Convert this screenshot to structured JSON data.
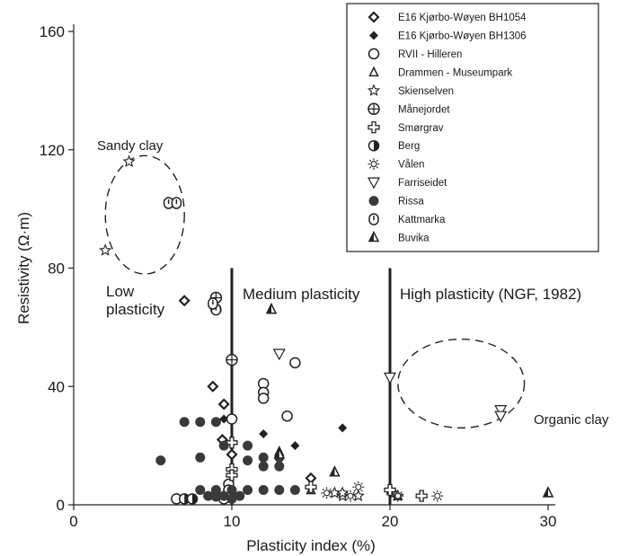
{
  "chart_data": {
    "type": "scatter",
    "xlabel": "Plasticity index (%)",
    "ylabel": "Resistivity (Ω·m)",
    "xlim": [
      0,
      30
    ],
    "ylim": [
      0,
      160
    ],
    "xticks": [
      0,
      10,
      20,
      30
    ],
    "yticks": [
      0,
      40,
      80,
      120,
      160
    ],
    "grid": false,
    "legend_position": "top-right",
    "vlines": [
      10,
      20
    ],
    "annotations": [
      {
        "id": "sandy",
        "text": "Sandy clay"
      },
      {
        "id": "low1",
        "text": "Low"
      },
      {
        "id": "low2",
        "text": "plasticity"
      },
      {
        "id": "medium",
        "text": "Medium plasticity"
      },
      {
        "id": "high",
        "text": "High plasticity (NGF, 1982)"
      },
      {
        "id": "organic",
        "text": "Organic clay"
      }
    ],
    "ellipses": [
      {
        "label": "Sandy clay",
        "cx": 4.5,
        "cy": 98,
        "rx": 2.5,
        "ry": 20
      },
      {
        "label": "Organic clay",
        "cx": 24.5,
        "cy": 41,
        "rx": 4,
        "ry": 15
      }
    ],
    "series": [
      {
        "name": "E16 Kjørbo-Wøyen BH1054",
        "marker": "diamond-open",
        "points": [
          [
            7,
            69
          ],
          [
            8.8,
            40
          ],
          [
            9.5,
            34
          ],
          [
            9.4,
            22
          ],
          [
            10,
            17
          ],
          [
            15,
            9
          ],
          [
            9.5,
            3
          ]
        ]
      },
      {
        "name": "E16 Kjørbo-Wøyen BH1306",
        "marker": "diamond-filled",
        "points": [
          [
            9.5,
            29
          ],
          [
            12,
            24
          ],
          [
            14,
            20
          ],
          [
            17,
            26
          ],
          [
            10,
            4
          ],
          [
            9.8,
            3
          ]
        ]
      },
      {
        "name": "RVII - Hilleren",
        "marker": "circle-open",
        "points": [
          [
            14,
            48
          ],
          [
            12,
            41
          ],
          [
            12,
            38
          ],
          [
            12,
            36
          ],
          [
            13.5,
            30
          ],
          [
            10,
            29
          ],
          [
            9,
            66
          ],
          [
            9.8,
            7
          ],
          [
            9.8,
            5
          ],
          [
            6.5,
            2
          ],
          [
            9.5,
            2
          ]
        ]
      },
      {
        "name": "Drammen - Museumpark",
        "marker": "triangle-open",
        "points": [
          [
            12.5,
            66
          ],
          [
            13,
            18
          ],
          [
            16.5,
            11
          ],
          [
            15,
            5
          ],
          [
            20.3,
            4
          ],
          [
            20.5,
            3
          ],
          [
            30,
            4
          ]
        ]
      },
      {
        "name": "Skienselven",
        "marker": "star",
        "points": [
          [
            3.5,
            116
          ],
          [
            2,
            86
          ],
          [
            16.5,
            4
          ],
          [
            17,
            3
          ],
          [
            17,
            4
          ],
          [
            18,
            3
          ],
          [
            20,
            5
          ],
          [
            20.5,
            3
          ]
        ]
      },
      {
        "name": "Månejordet",
        "marker": "circle-plus",
        "points": [
          [
            9,
            70
          ],
          [
            10,
            49
          ]
        ]
      },
      {
        "name": "Smørgrav",
        "marker": "cross-open",
        "points": [
          [
            10,
            21
          ],
          [
            10,
            12
          ],
          [
            10,
            10
          ],
          [
            15,
            6
          ],
          [
            20,
            5
          ],
          [
            22,
            3
          ]
        ]
      },
      {
        "name": "Berg",
        "marker": "half-circle",
        "points": [
          [
            7,
            2
          ],
          [
            7.5,
            2
          ],
          [
            9,
            3
          ],
          [
            10,
            3
          ]
        ]
      },
      {
        "name": "Vålen",
        "marker": "sun",
        "points": [
          [
            16,
            4
          ],
          [
            17.5,
            3
          ],
          [
            18,
            6
          ],
          [
            20.5,
            3
          ],
          [
            23,
            3
          ]
        ]
      },
      {
        "name": "Farriseidet",
        "marker": "triangle-down",
        "points": [
          [
            13,
            51
          ],
          [
            20,
            43
          ],
          [
            27,
            32
          ],
          [
            27,
            30
          ]
        ]
      },
      {
        "name": "Rissa",
        "marker": "circle-filled",
        "points": [
          [
            5.5,
            15
          ],
          [
            7,
            28
          ],
          [
            8,
            28
          ],
          [
            9,
            28
          ],
          [
            8,
            16
          ],
          [
            9.5,
            20
          ],
          [
            11,
            20
          ],
          [
            12,
            16
          ],
          [
            13,
            16
          ],
          [
            13,
            13
          ],
          [
            12,
            13
          ],
          [
            11,
            15
          ],
          [
            8,
            5
          ],
          [
            9,
            5
          ],
          [
            10,
            5
          ],
          [
            11,
            5
          ],
          [
            12,
            5
          ],
          [
            13,
            5
          ],
          [
            14,
            5
          ],
          [
            9,
            3
          ],
          [
            10,
            2
          ],
          [
            10.5,
            3
          ],
          [
            8.5,
            3
          ],
          [
            9.5,
            3
          ]
        ]
      },
      {
        "name": "Kattmarka",
        "marker": "circle-tick",
        "points": [
          [
            6,
            102
          ],
          [
            6.5,
            102
          ],
          [
            9,
            66
          ],
          [
            8.8,
            68
          ]
        ]
      },
      {
        "name": "Buvika",
        "marker": "triangle-half",
        "points": [
          [
            12.5,
            66
          ],
          [
            13,
            17
          ],
          [
            16.5,
            11
          ],
          [
            30,
            4
          ]
        ]
      }
    ]
  }
}
